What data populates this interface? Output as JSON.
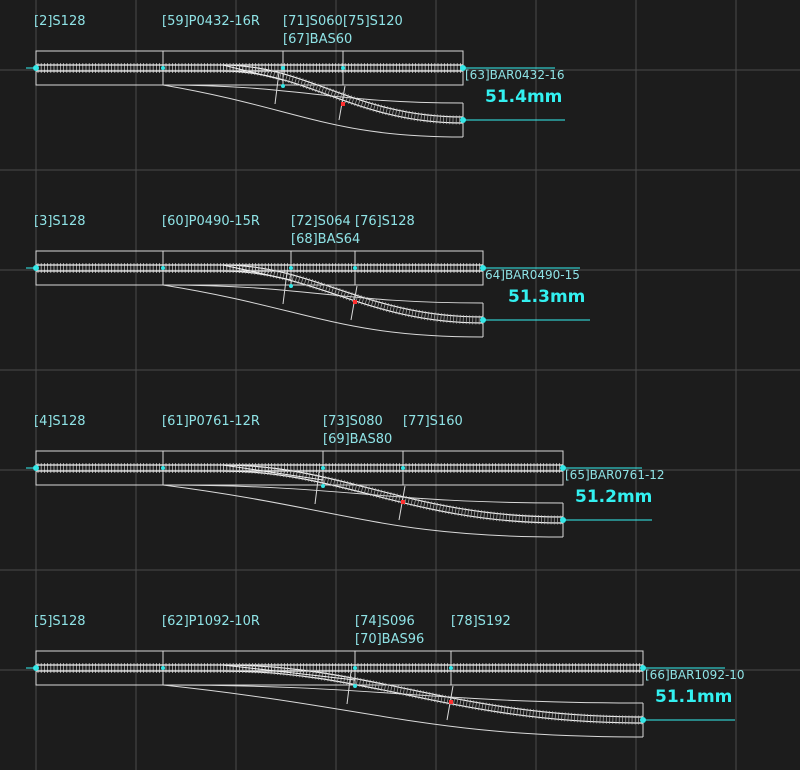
{
  "colors": {
    "background": "#1c1c1c",
    "grid": "#4a4a4a",
    "outline": "#d9d9d9",
    "rail": "#f2f2f2",
    "label": "#8fe3e6",
    "measure": "#33f0f0",
    "joint_marker": "#33e6e6",
    "center_marker": "#ff3030"
  },
  "rows": [
    {
      "straight_label": "[2]S128",
      "turnout_label": "[59]P0432-16R",
      "joint_label": "[71]S060",
      "branch_label": "[67]BAS60",
      "extension_label": "[75]S120",
      "end_label": "[63]BAR0432-16",
      "measurement": "51.4mm"
    },
    {
      "straight_label": "[3]S128",
      "turnout_label": "[60]P0490-15R",
      "joint_label": "[72]S064",
      "branch_label": "[68]BAS64",
      "extension_label": "[76]S128",
      "end_label": "64]BAR0490-15",
      "measurement": "51.3mm"
    },
    {
      "straight_label": "[4]S128",
      "turnout_label": "[61]P0761-12R",
      "joint_label": "[73]S080",
      "branch_label": "[69]BAS80",
      "extension_label": "[77]S160",
      "end_label": "[65]BAR0761-12",
      "measurement": "51.2mm"
    },
    {
      "straight_label": "[5]S128",
      "turnout_label": "[62]P1092-10R",
      "joint_label": "[74]S096",
      "branch_label": "[70]BAS96",
      "extension_label": "[78]S192",
      "end_label": "[66]BAR1092-10",
      "measurement": "51.1mm"
    }
  ]
}
